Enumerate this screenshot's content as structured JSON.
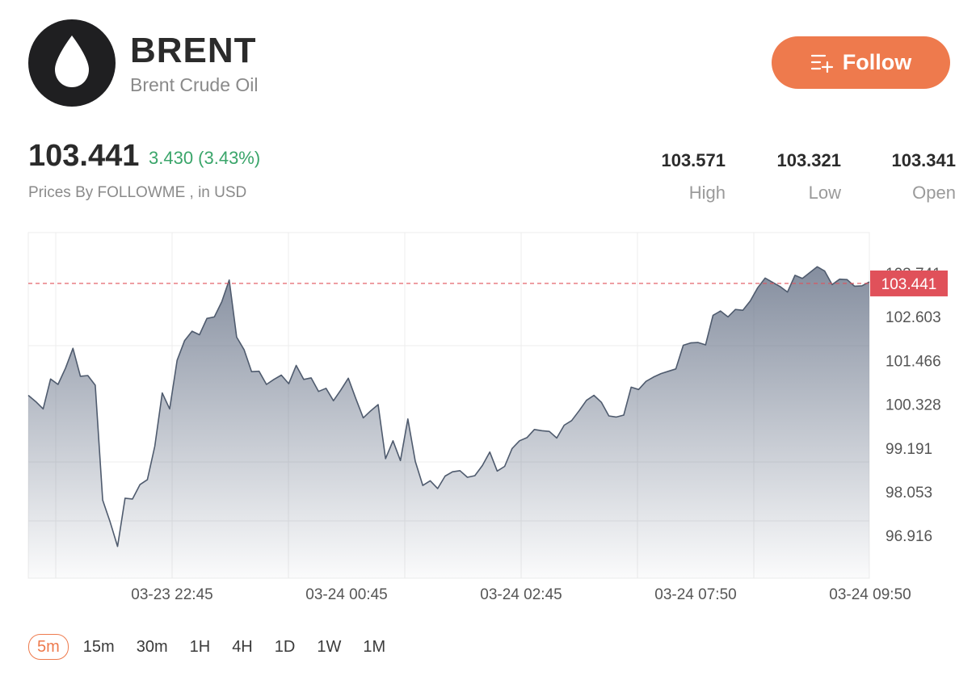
{
  "header": {
    "symbol": "BRENT",
    "name": "Brent Crude Oil",
    "follow_label": "Follow",
    "logo_icon": "oil-drop-icon",
    "accent_color": "#ee7a4d"
  },
  "quote": {
    "price": "103.441",
    "change": "3.430 (3.43%)",
    "source": "Prices By FOLLOWME , in USD",
    "change_color": "#3aa56a"
  },
  "stats": [
    {
      "value": "103.571",
      "label": "High"
    },
    {
      "value": "103.321",
      "label": "Low"
    },
    {
      "value": "103.341",
      "label": "Open"
    }
  ],
  "timeframes": {
    "items": [
      "5m",
      "15m",
      "30m",
      "1H",
      "4H",
      "1D",
      "1W",
      "1M"
    ],
    "active": "5m"
  },
  "chart_data": {
    "type": "area",
    "y_ticks": [
      "103.741",
      "102.603",
      "101.466",
      "100.328",
      "99.191",
      "98.053",
      "96.916"
    ],
    "x_ticks": [
      "03-23 22:45",
      "03-24 00:45",
      "03-24 02:45",
      "03-24 07:50",
      "03-24 09:50"
    ],
    "current_price_label": "103.441",
    "current_price": 103.441,
    "ylim": [
      95.85,
      104.75
    ],
    "line_color": "#4f5b6e",
    "price_line_color": "#e0515a",
    "grid": true,
    "values": [
      100.56,
      100.4,
      100.21,
      100.98,
      100.84,
      101.26,
      101.77,
      101.05,
      101.07,
      100.82,
      97.86,
      97.3,
      96.67,
      97.91,
      97.89,
      98.26,
      98.39,
      99.25,
      100.62,
      100.21,
      101.46,
      101.97,
      102.21,
      102.12,
      102.54,
      102.58,
      102.97,
      103.53,
      102.06,
      101.73,
      101.17,
      101.18,
      100.84,
      100.97,
      101.08,
      100.86,
      101.33,
      100.97,
      101.01,
      100.66,
      100.74,
      100.42,
      100.7,
      101.0,
      100.48,
      99.98,
      100.16,
      100.32,
      98.93,
      99.39,
      98.88,
      99.95,
      98.86,
      98.24,
      98.36,
      98.16,
      98.48,
      98.59,
      98.62,
      98.45,
      98.49,
      98.75,
      99.1,
      98.61,
      98.73,
      99.19,
      99.39,
      99.47,
      99.68,
      99.65,
      99.63,
      99.46,
      99.79,
      99.91,
      100.16,
      100.43,
      100.56,
      100.38,
      100.03,
      100.0,
      100.05,
      100.77,
      100.71,
      100.92,
      101.03,
      101.12,
      101.18,
      101.24,
      101.85,
      101.91,
      101.92,
      101.86,
      102.62,
      102.73,
      102.58,
      102.77,
      102.75,
      102.99,
      103.33,
      103.58,
      103.47,
      103.36,
      103.22,
      103.65,
      103.57,
      103.72,
      103.87,
      103.76,
      103.41,
      103.55,
      103.54,
      103.37,
      103.38,
      103.48
    ]
  }
}
